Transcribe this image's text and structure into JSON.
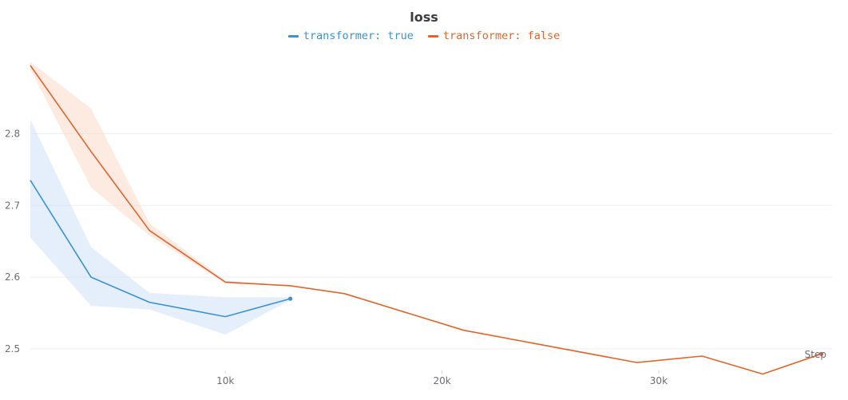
{
  "chart_data": {
    "type": "line",
    "title": "loss",
    "xlabel": "Step",
    "ylabel": "",
    "xlim": [
      1000,
      38000
    ],
    "ylim": [
      2.47,
      2.925
    ],
    "x_ticks": [
      10000,
      20000,
      30000
    ],
    "x_tick_labels": [
      "10k",
      "20k",
      "30k"
    ],
    "y_ticks": [
      2.5,
      2.6,
      2.7,
      2.8
    ],
    "y_tick_labels": [
      "2.5",
      "2.6",
      "2.7",
      "2.8"
    ],
    "grid": true,
    "legend_position": "top-center",
    "series": [
      {
        "name": "transformer: true",
        "color": "#3a91d4",
        "band_color": "#cfe2f8",
        "x": [
          1000,
          3800,
          6500,
          10000,
          13000
        ],
        "values": [
          2.735,
          2.6,
          2.565,
          2.545,
          2.57
        ],
        "upper": [
          2.82,
          2.642,
          2.578,
          2.572,
          2.572
        ],
        "lower": [
          2.655,
          2.56,
          2.555,
          2.52,
          2.568
        ]
      },
      {
        "name": "transformer: false",
        "color": "#e0652a",
        "band_color": "#fbd8c8",
        "x": [
          1000,
          3800,
          6500,
          10000,
          13000,
          15500,
          21000,
          29000,
          32000,
          34800,
          37500
        ],
        "values": [
          2.895,
          2.775,
          2.665,
          2.593,
          2.588,
          2.577,
          2.526,
          2.481,
          2.49,
          2.465,
          2.493
        ],
        "upper": [
          2.9,
          2.835,
          2.675,
          2.595,
          2.588,
          2.577,
          2.526,
          2.481,
          2.49,
          2.465,
          2.493
        ],
        "lower": [
          2.89,
          2.725,
          2.658,
          2.591,
          2.588,
          2.577,
          2.526,
          2.481,
          2.49,
          2.465,
          2.493
        ]
      }
    ]
  }
}
